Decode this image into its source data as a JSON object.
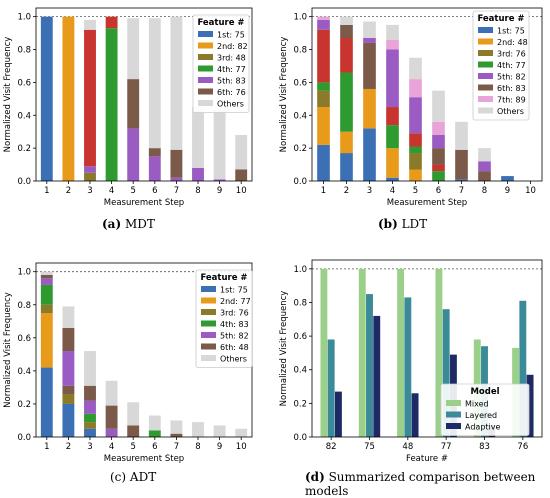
{
  "colors": {
    "blue": "#3c70b5",
    "orange": "#e89a1a",
    "olive": "#8c7a2b",
    "green": "#2f9a2f",
    "purple": "#9a5bc2",
    "brown": "#7b5a4a",
    "pink": "#e8a3d8",
    "red": "#c8342e",
    "others": "#d8d8d8",
    "cyan": "#3fb6c8",
    "mixed": "#9bd08a",
    "layered": "#3a8a98",
    "adaptive": "#1e2a66"
  },
  "common": {
    "ylabel": "Normalized Visit Frequency",
    "xlabel": "Measurement Step",
    "legend_title": "Feature #",
    "yticks": [
      "0.0",
      "0.2",
      "0.4",
      "0.6",
      "0.8",
      "1.0"
    ],
    "xticks": [
      "1",
      "2",
      "3",
      "4",
      "5",
      "6",
      "7",
      "8",
      "9",
      "10"
    ]
  },
  "captions": {
    "a_label": "(a)",
    "a_text": "MDT",
    "b_label": "(b)",
    "b_text": "LDT",
    "c_label": "(c)",
    "c_text": "ADT",
    "d_label": "(d)",
    "d_text": "Summarized comparison between models"
  },
  "chart_data": [
    {
      "panel": "a",
      "type": "bar",
      "stacked": true,
      "categories": [
        "1",
        "2",
        "3",
        "4",
        "5",
        "6",
        "7",
        "8",
        "9",
        "10"
      ],
      "ylim": [
        0,
        1.0
      ],
      "legend": [
        {
          "label": "1st: 75",
          "color": "blue"
        },
        {
          "label": "2nd: 82",
          "color": "orange"
        },
        {
          "label": "3rd: 48",
          "color": "olive"
        },
        {
          "label": "4th: 77",
          "color": "green"
        },
        {
          "label": "5th: 83",
          "color": "purple"
        },
        {
          "label": "6th: 76",
          "color": "brown"
        },
        {
          "label": "Others",
          "color": "others"
        }
      ],
      "stacks": [
        [
          [
            "blue",
            1.0
          ]
        ],
        [
          [
            "orange",
            1.0
          ]
        ],
        [
          [
            "olive",
            0.05
          ],
          [
            "purple",
            0.04
          ],
          [
            "red",
            0.83
          ],
          [
            "others",
            0.06
          ]
        ],
        [
          [
            "green",
            0.93
          ],
          [
            "red",
            0.07
          ]
        ],
        [
          [
            "purple",
            0.32
          ],
          [
            "brown",
            0.3
          ],
          [
            "others",
            0.37
          ]
        ],
        [
          [
            "purple",
            0.15
          ],
          [
            "brown",
            0.05
          ],
          [
            "others",
            0.79
          ]
        ],
        [
          [
            "purple",
            0.02
          ],
          [
            "brown",
            0.17
          ],
          [
            "others",
            0.81
          ]
        ],
        [
          [
            "purple",
            0.08
          ],
          [
            "others",
            0.37
          ]
        ],
        [
          [
            "purple",
            0.01
          ],
          [
            "others",
            0.43
          ]
        ],
        [
          [
            "brown",
            0.07
          ],
          [
            "others",
            0.21
          ]
        ]
      ]
    },
    {
      "panel": "b",
      "type": "bar",
      "stacked": true,
      "categories": [
        "1",
        "2",
        "3",
        "4",
        "5",
        "6",
        "7",
        "8",
        "9",
        "10"
      ],
      "ylim": [
        0,
        1.0
      ],
      "legend": [
        {
          "label": "1st: 75",
          "color": "blue"
        },
        {
          "label": "2nd: 48",
          "color": "orange"
        },
        {
          "label": "3rd: 76",
          "color": "olive"
        },
        {
          "label": "4th: 77",
          "color": "green"
        },
        {
          "label": "5th: 82",
          "color": "purple"
        },
        {
          "label": "6th: 83",
          "color": "brown"
        },
        {
          "label": "7th: 89",
          "color": "pink"
        },
        {
          "label": "Others",
          "color": "others"
        }
      ],
      "stacks": [
        [
          [
            "blue",
            0.22
          ],
          [
            "orange",
            0.23
          ],
          [
            "olive",
            0.1
          ],
          [
            "green",
            0.05
          ],
          [
            "red",
            0.32
          ],
          [
            "purple",
            0.06
          ],
          [
            "pink",
            0.02
          ]
        ],
        [
          [
            "blue",
            0.17
          ],
          [
            "orange",
            0.13
          ],
          [
            "green",
            0.36
          ],
          [
            "red",
            0.21
          ],
          [
            "brown",
            0.08
          ],
          [
            "others",
            0.05
          ]
        ],
        [
          [
            "blue",
            0.32
          ],
          [
            "orange",
            0.24
          ],
          [
            "brown",
            0.28
          ],
          [
            "purple",
            0.03
          ],
          [
            "others",
            0.1
          ]
        ],
        [
          [
            "blue",
            0.02
          ],
          [
            "orange",
            0.18
          ],
          [
            "green",
            0.14
          ],
          [
            "red",
            0.11
          ],
          [
            "purple",
            0.35
          ],
          [
            "pink",
            0.06
          ],
          [
            "others",
            0.09
          ]
        ],
        [
          [
            "orange",
            0.07
          ],
          [
            "olive",
            0.1
          ],
          [
            "green",
            0.04
          ],
          [
            "red",
            0.08
          ],
          [
            "purple",
            0.22
          ],
          [
            "pink",
            0.11
          ],
          [
            "others",
            0.13
          ]
        ],
        [
          [
            "green",
            0.06
          ],
          [
            "red",
            0.04
          ],
          [
            "brown",
            0.1
          ],
          [
            "purple",
            0.08
          ],
          [
            "pink",
            0.08
          ],
          [
            "others",
            0.19
          ]
        ],
        [
          [
            "blue",
            0.01
          ],
          [
            "brown",
            0.18
          ],
          [
            "others",
            0.17
          ]
        ],
        [
          [
            "brown",
            0.06
          ],
          [
            "purple",
            0.06
          ],
          [
            "others",
            0.08
          ]
        ],
        [
          [
            "blue",
            0.03
          ]
        ],
        []
      ]
    },
    {
      "panel": "c",
      "type": "bar",
      "stacked": true,
      "categories": [
        "1",
        "2",
        "3",
        "4",
        "5",
        "6",
        "7",
        "8",
        "9",
        "10"
      ],
      "ylim": [
        0,
        1.0
      ],
      "legend": [
        {
          "label": "1st: 75",
          "color": "blue"
        },
        {
          "label": "2nd: 77",
          "color": "orange"
        },
        {
          "label": "3rd: 76",
          "color": "olive"
        },
        {
          "label": "4th: 83",
          "color": "green"
        },
        {
          "label": "5th: 82",
          "color": "purple"
        },
        {
          "label": "6th: 48",
          "color": "brown"
        },
        {
          "label": "Others",
          "color": "others"
        }
      ],
      "stacks": [
        [
          [
            "blue",
            0.42
          ],
          [
            "orange",
            0.33
          ],
          [
            "olive",
            0.05
          ],
          [
            "green",
            0.12
          ],
          [
            "purple",
            0.04
          ],
          [
            "brown",
            0.02
          ],
          [
            "others",
            0.02
          ]
        ],
        [
          [
            "blue",
            0.2
          ],
          [
            "olive",
            0.06
          ],
          [
            "brown",
            0.05
          ],
          [
            "purple",
            0.21
          ],
          [
            "brown",
            0.14
          ],
          [
            "others",
            0.13
          ]
        ],
        [
          [
            "blue",
            0.05
          ],
          [
            "olive",
            0.04
          ],
          [
            "green",
            0.05
          ],
          [
            "purple",
            0.08
          ],
          [
            "brown",
            0.09
          ],
          [
            "others",
            0.21
          ]
        ],
        [
          [
            "purple",
            0.05
          ],
          [
            "brown",
            0.14
          ],
          [
            "others",
            0.15
          ]
        ],
        [
          [
            "brown",
            0.07
          ],
          [
            "others",
            0.14
          ]
        ],
        [
          [
            "green",
            0.04
          ],
          [
            "others",
            0.09
          ]
        ],
        [
          [
            "brown",
            0.02
          ],
          [
            "others",
            0.08
          ]
        ],
        [
          [
            "others",
            0.09
          ]
        ],
        [
          [
            "others",
            0.07
          ]
        ],
        [
          [
            "others",
            0.05
          ]
        ]
      ]
    },
    {
      "panel": "d",
      "type": "bar",
      "stacked": false,
      "categories": [
        "82",
        "75",
        "48",
        "77",
        "83",
        "76"
      ],
      "xlabel": "Feature #",
      "ylim": [
        0,
        1.0
      ],
      "legend_title": "Model",
      "series": [
        {
          "name": "Mixed",
          "color": "mixed",
          "values": [
            1.0,
            1.0,
            1.0,
            1.0,
            0.58,
            0.53
          ]
        },
        {
          "name": "Layered",
          "color": "layered",
          "values": [
            0.58,
            0.85,
            0.83,
            0.76,
            0.54,
            0.81
          ]
        },
        {
          "name": "Adaptive",
          "color": "adaptive",
          "values": [
            0.27,
            0.72,
            0.26,
            0.49,
            0.07,
            0.37
          ]
        }
      ]
    }
  ]
}
